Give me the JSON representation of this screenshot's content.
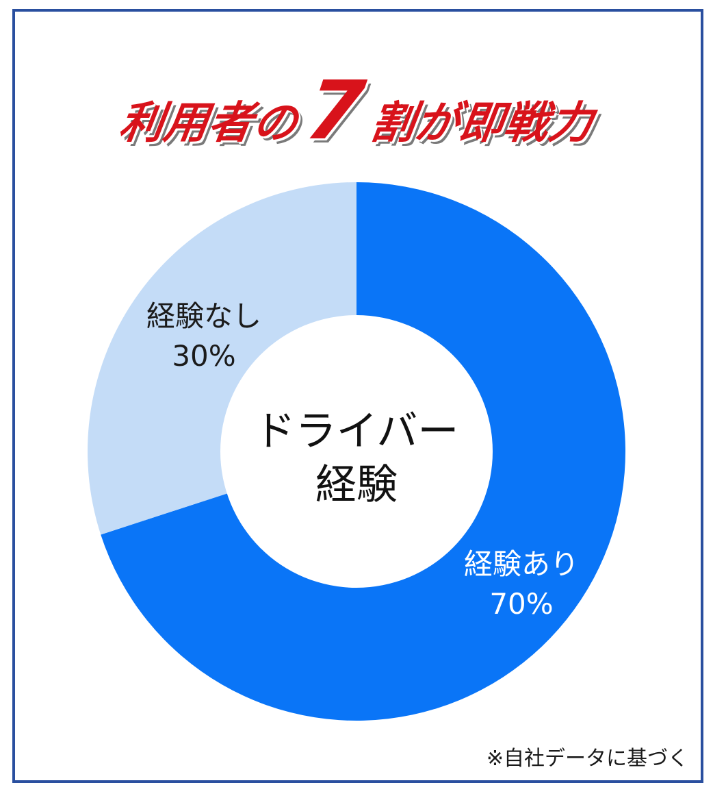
{
  "title": {
    "part1": "利用者の",
    "number": "7",
    "part2": "割が",
    "part3": "即戦力"
  },
  "chart_data": {
    "type": "pie",
    "center_label_line1": "ドライバー",
    "center_label_line2": "経験",
    "slices": [
      {
        "label": "経験あり",
        "value": 70,
        "value_label": "70%",
        "color": "#0a75f7",
        "text_color": "#ffffff"
      },
      {
        "label": "経験なし",
        "value": 30,
        "value_label": "30%",
        "color": "#c4dcf7",
        "text_color": "#1b1b1b"
      }
    ]
  },
  "footnote": "※自社データに基づく",
  "colors": {
    "border": "#2a4f9f",
    "title_red": "#d8131b"
  }
}
